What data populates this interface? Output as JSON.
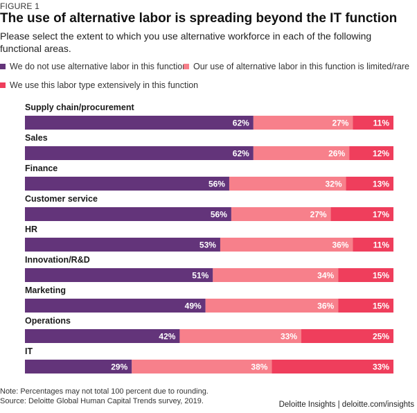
{
  "figure_label": "FIGURE 1",
  "chart_data": {
    "type": "bar",
    "orientation": "horizontal",
    "stacked": true,
    "title": "The use of alternative labor is spreading beyond the IT function",
    "subtitle": "Please select the extent to which you use alternative workforce in each of the following functional areas.",
    "categories": [
      "Supply chain/procurement",
      "Sales",
      "Finance",
      "Customer service",
      "HR",
      "Innovation/R&D",
      "Marketing",
      "Operations",
      "IT"
    ],
    "series": [
      {
        "name": "We do not use alternative labor in this function",
        "color": "#63347a",
        "values": [
          62,
          62,
          56,
          56,
          53,
          51,
          49,
          42,
          29
        ]
      },
      {
        "name": "Our use of alternative labor in this function is limited/rare",
        "color": "#f7808b",
        "values": [
          27,
          26,
          32,
          27,
          36,
          34,
          36,
          33,
          38
        ]
      },
      {
        "name": "We use this labor type extensively in this function",
        "color": "#ef3e5c",
        "values": [
          11,
          12,
          13,
          17,
          11,
          15,
          15,
          25,
          33
        ]
      }
    ],
    "value_suffix": "%",
    "legend_position": "top"
  },
  "notes": {
    "note": "Note: Percentages may not total 100 percent due to rounding.",
    "source": "Source: Deloitte Global Human Capital Trends survey, 2019."
  },
  "credit": "Deloitte Insights | deloitte.com/insights"
}
